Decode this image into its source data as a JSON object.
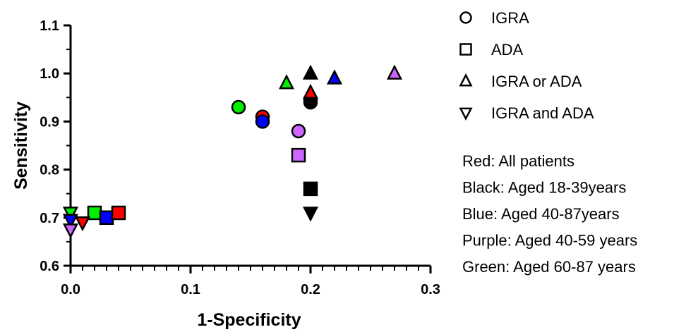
{
  "chart_data": {
    "type": "scatter",
    "title": "",
    "xlabel": "1-Specificity",
    "ylabel": "Sensitivity",
    "xlim": [
      0.0,
      0.3
    ],
    "ylim": [
      0.6,
      1.1
    ],
    "x_ticks": [
      "0.0",
      "0.1",
      "0.2",
      "0.3"
    ],
    "x_tick_values": [
      0.0,
      0.1,
      0.2,
      0.3
    ],
    "y_ticks": [
      "0.6",
      "0.7",
      "0.8",
      "0.9",
      "1.0",
      "1.1"
    ],
    "y_tick_values": [
      0.6,
      0.7,
      0.8,
      0.9,
      1.0,
      1.1
    ],
    "grid": false,
    "legend_position": "right",
    "markers": [
      {
        "label": "IGRA",
        "shape": "circle"
      },
      {
        "label": "ADA",
        "shape": "square"
      },
      {
        "label": "IGRA or ADA",
        "shape": "triangle-up"
      },
      {
        "label": "IGRA and ADA",
        "shape": "triangle-down"
      }
    ],
    "color_notes": [
      {
        "text": "Red: All patients",
        "color": "#ff0000"
      },
      {
        "text": "Black: Aged 18-39years",
        "color": "#000000"
      },
      {
        "text": "Blue: Aged 40-87years",
        "color": "#0000ff"
      },
      {
        "text": "Purple: Aged 40-59 years",
        "color": "#cc66ff"
      },
      {
        "text": "Green: Aged 60-87 years",
        "color": "#00ee00"
      }
    ],
    "points": [
      {
        "shape": "circle",
        "group": "Green",
        "x": 0.14,
        "y": 0.93
      },
      {
        "shape": "circle",
        "group": "Red",
        "x": 0.16,
        "y": 0.91
      },
      {
        "shape": "circle",
        "group": "Blue",
        "x": 0.16,
        "y": 0.9
      },
      {
        "shape": "circle",
        "group": "Purple",
        "x": 0.19,
        "y": 0.88
      },
      {
        "shape": "circle",
        "group": "Red",
        "x": 0.2,
        "y": 0.945
      },
      {
        "shape": "circle",
        "group": "Black",
        "x": 0.2,
        "y": 0.94
      },
      {
        "shape": "square",
        "group": "Purple",
        "x": 0.19,
        "y": 0.83
      },
      {
        "shape": "square",
        "group": "Black",
        "x": 0.2,
        "y": 0.76
      },
      {
        "shape": "square",
        "group": "Green",
        "x": 0.02,
        "y": 0.71
      },
      {
        "shape": "square",
        "group": "Blue",
        "x": 0.03,
        "y": 0.7
      },
      {
        "shape": "square",
        "group": "Red",
        "x": 0.04,
        "y": 0.71
      },
      {
        "shape": "triangle-up",
        "group": "Green",
        "x": 0.18,
        "y": 0.98
      },
      {
        "shape": "triangle-up",
        "group": "Black",
        "x": 0.2,
        "y": 1.0
      },
      {
        "shape": "triangle-up",
        "group": "Red",
        "x": 0.2,
        "y": 0.96
      },
      {
        "shape": "triangle-up",
        "group": "Blue",
        "x": 0.22,
        "y": 0.99
      },
      {
        "shape": "triangle-up",
        "group": "Purple",
        "x": 0.27,
        "y": 1.0
      },
      {
        "shape": "triangle-down",
        "group": "Black",
        "x": 0.2,
        "y": 0.71
      },
      {
        "shape": "triangle-down",
        "group": "Green",
        "x": 0.0,
        "y": 0.71
      },
      {
        "shape": "triangle-down",
        "group": "Blue",
        "x": 0.0,
        "y": 0.695
      },
      {
        "shape": "triangle-down",
        "group": "Red",
        "x": 0.01,
        "y": 0.69
      },
      {
        "shape": "triangle-down",
        "group": "Purple",
        "x": 0.0,
        "y": 0.675
      }
    ]
  }
}
